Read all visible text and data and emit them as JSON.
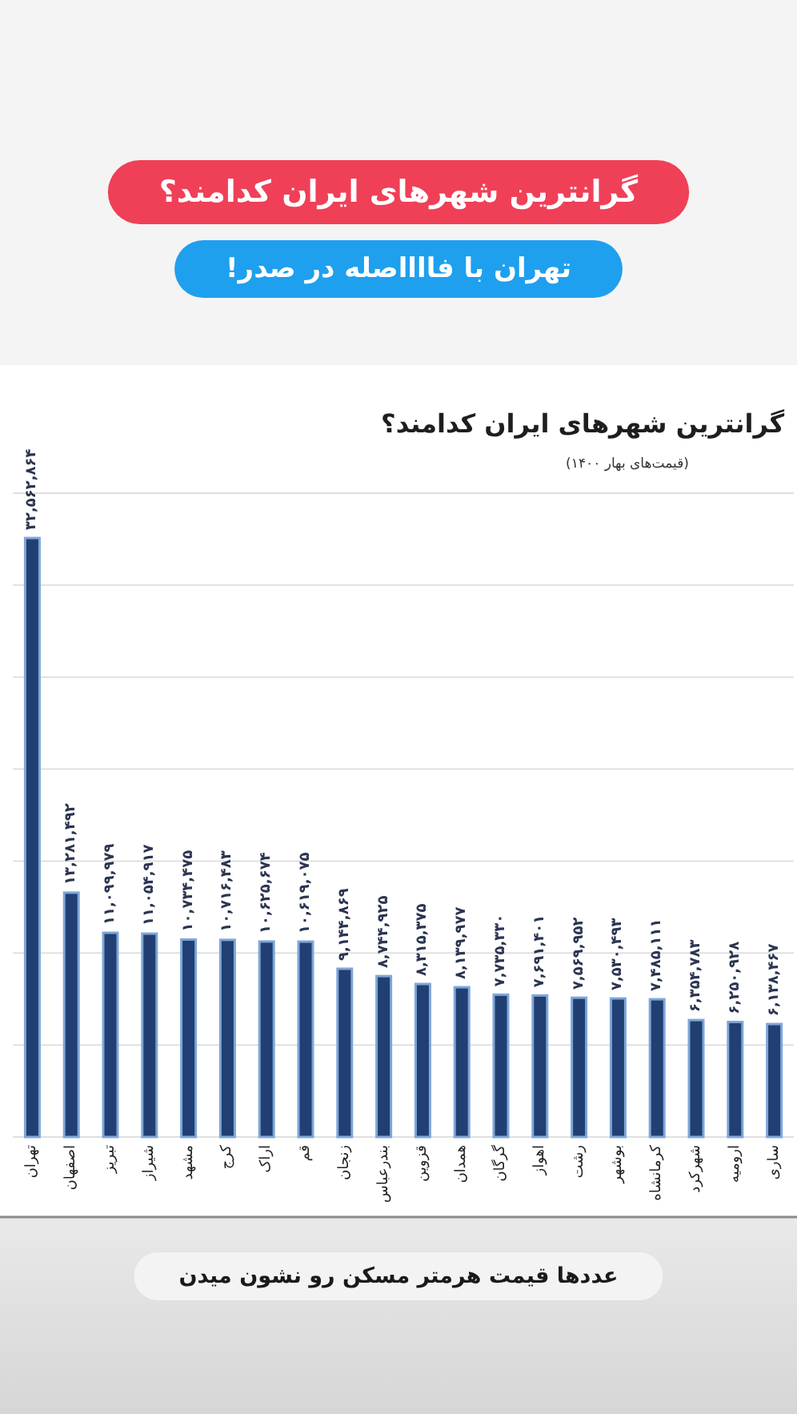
{
  "chart_data": {
    "type": "bar",
    "title": "گرانترین شهرهای ایران کدامند؟",
    "subtitle": "(قیمت‌های بهار ۱۴۰۰)",
    "annotations": [
      "گرانترین شهرهای ایران کدامند؟",
      "تهران با فااااصله در صدر!",
      "عددها قیمت هرمتر مسکن رو نشون میدن"
    ],
    "categories": [
      "تهران",
      "اصفهان",
      "تبریز",
      "شیراز",
      "مشهد",
      "کرج",
      "اراک",
      "قم",
      "زنجان",
      "بندرعباس",
      "قزوین",
      "همدان",
      "گرگان",
      "اهواز",
      "رشت",
      "بوشهر",
      "کرمانشاه",
      "شهرکرد",
      "ارومیه",
      "ساری"
    ],
    "values": [
      32562864,
      13281492,
      11099979,
      11054917,
      10734475,
      10716483,
      10625674,
      10619075,
      9144869,
      8744925,
      8315375,
      8139977,
      7735330,
      7691401,
      7569952,
      7530493,
      7485111,
      6354783,
      6250928,
      6138467
    ],
    "value_labels": [
      "۳۲,۵۶۲,۸۶۴",
      "۱۳,۲۸۱,۴۹۲",
      "۱۱,۰۹۹,۹۷۹",
      "۱۱,۰۵۴,۹۱۷",
      "۱۰,۷۳۴,۴۷۵",
      "۱۰,۷۱۶,۴۸۳",
      "۱۰,۶۲۵,۶۷۴",
      "۱۰,۶۱۹,۰۷۵",
      "۹,۱۴۴,۸۶۹",
      "۸,۷۴۴,۹۲۵",
      "۸,۳۱۵,۳۷۵",
      "۸,۱۳۹,۹۷۷",
      "۷,۷۳۵,۳۳۰",
      "۷,۶۹۱,۴۰۱",
      "۷,۵۶۹,۹۵۲",
      "۷,۵۳۰,۴۹۳",
      "۷,۴۸۵,۱۱۱",
      "۶,۳۵۴,۷۸۳",
      "۶,۲۵۰,۹۲۸",
      "۶,۱۳۸,۴۶۷"
    ],
    "color": "#213f72",
    "ylim": [
      0,
      35000000
    ],
    "yticks": [
      {
        "value": 0,
        "label": null
      },
      {
        "value": 5000000,
        "label": null
      },
      {
        "value": 10000000,
        "label": null
      },
      {
        "value": 15000000,
        "label": null
      },
      {
        "value": 20000000,
        "label": null
      },
      {
        "value": 25000000,
        "label": null
      },
      {
        "value": 30000000,
        "label": null
      },
      {
        "value": 35000000,
        "label": null
      }
    ],
    "grid": "y",
    "tick_labels": "x"
  }
}
